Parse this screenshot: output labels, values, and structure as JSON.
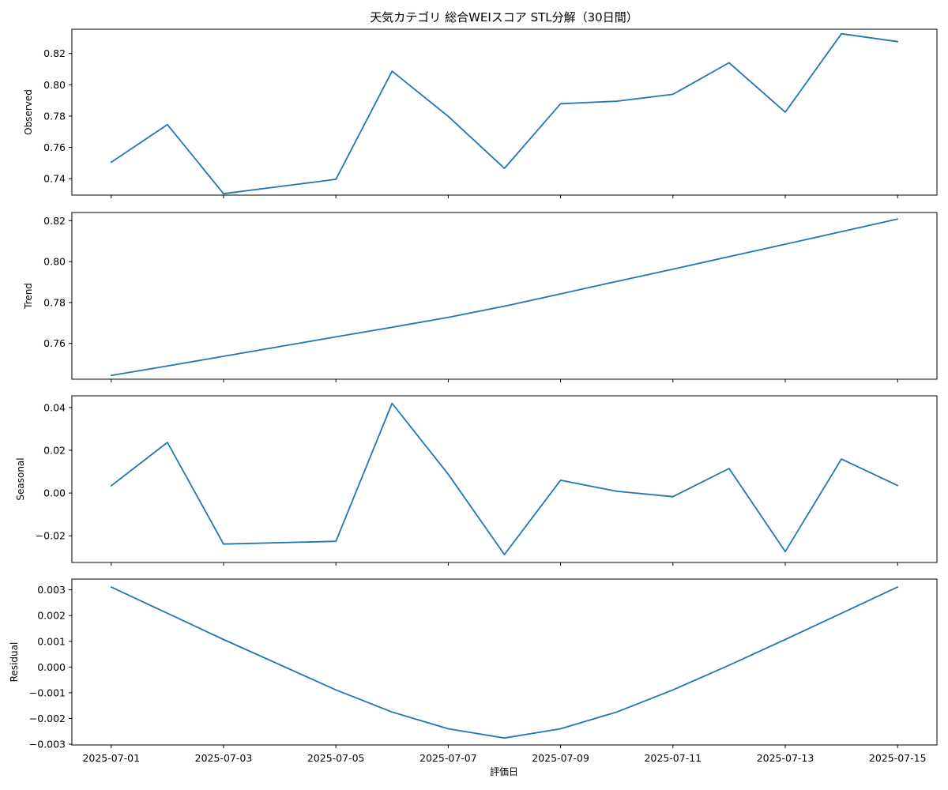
{
  "chart_data": {
    "type": "line",
    "title": "天気カテゴリ 総合WEIスコア STL分解（30日間）",
    "xlabel": "評価日",
    "line_color": "#1f77b4",
    "x": [
      "2025-07-01",
      "2025-07-02",
      "2025-07-03",
      "2025-07-05",
      "2025-07-06",
      "2025-07-07",
      "2025-07-08",
      "2025-07-09",
      "2025-07-10",
      "2025-07-11",
      "2025-07-12",
      "2025-07-13",
      "2025-07-14",
      "2025-07-15"
    ],
    "x_ticks": [
      "2025-07-01",
      "2025-07-03",
      "2025-07-05",
      "2025-07-07",
      "2025-07-09",
      "2025-07-11",
      "2025-07-13",
      "2025-07-15"
    ],
    "xlim": [
      "2025-06-30T07:12",
      "2025-07-15T16:48"
    ],
    "panels": [
      {
        "ylabel": "Observed",
        "ylim": [
          0.7295,
          0.8355
        ],
        "yticks": [
          "0.74",
          "0.76",
          "0.78",
          "0.80",
          "0.82"
        ],
        "yticks_values": [
          0.74,
          0.76,
          0.78,
          0.8,
          0.82
        ],
        "values": [
          0.7505,
          0.7746,
          0.7304,
          0.7396,
          0.8087,
          0.7798,
          0.7466,
          0.7879,
          0.7895,
          0.7939,
          0.8141,
          0.7825,
          0.8326,
          0.8276
        ]
      },
      {
        "ylabel": "Trend",
        "ylim": [
          0.7425,
          0.824
        ],
        "yticks": [
          "0.76",
          "0.78",
          "0.80",
          "0.82"
        ],
        "yticks_values": [
          0.76,
          0.78,
          0.8,
          0.82
        ],
        "values": [
          0.7443,
          0.749,
          0.7537,
          0.7632,
          0.7679,
          0.7727,
          0.7782,
          0.7842,
          0.7903,
          0.7963,
          0.8024,
          0.8085,
          0.8146,
          0.8208
        ]
      },
      {
        "ylabel": "Seasonal",
        "ylim": [
          -0.0325,
          0.0455
        ],
        "yticks": [
          "−0.02",
          "0.00",
          "0.02",
          "0.04"
        ],
        "yticks_values": [
          -0.02,
          0.0,
          0.02,
          0.04
        ],
        "values": [
          0.0034,
          0.0237,
          -0.0239,
          -0.0226,
          0.042,
          0.0088,
          -0.0288,
          0.006,
          0.0008,
          -0.0017,
          0.0115,
          -0.0274,
          0.0159,
          0.0035
        ]
      },
      {
        "ylabel": "Residual",
        "ylim": [
          -0.00303,
          0.00342
        ],
        "yticks": [
          "−0.003",
          "−0.002",
          "−0.001",
          "0.000",
          "0.001",
          "0.002",
          "0.003"
        ],
        "yticks_values": [
          -0.003,
          -0.002,
          -0.001,
          0.0,
          0.001,
          0.002,
          0.003
        ],
        "values": [
          0.00311,
          0.00209,
          0.00107,
          -0.00089,
          -0.00175,
          -0.0024,
          -0.00276,
          -0.0024,
          -0.00175,
          -0.00089,
          7e-05,
          0.00107,
          0.00209,
          0.00311
        ]
      }
    ]
  }
}
